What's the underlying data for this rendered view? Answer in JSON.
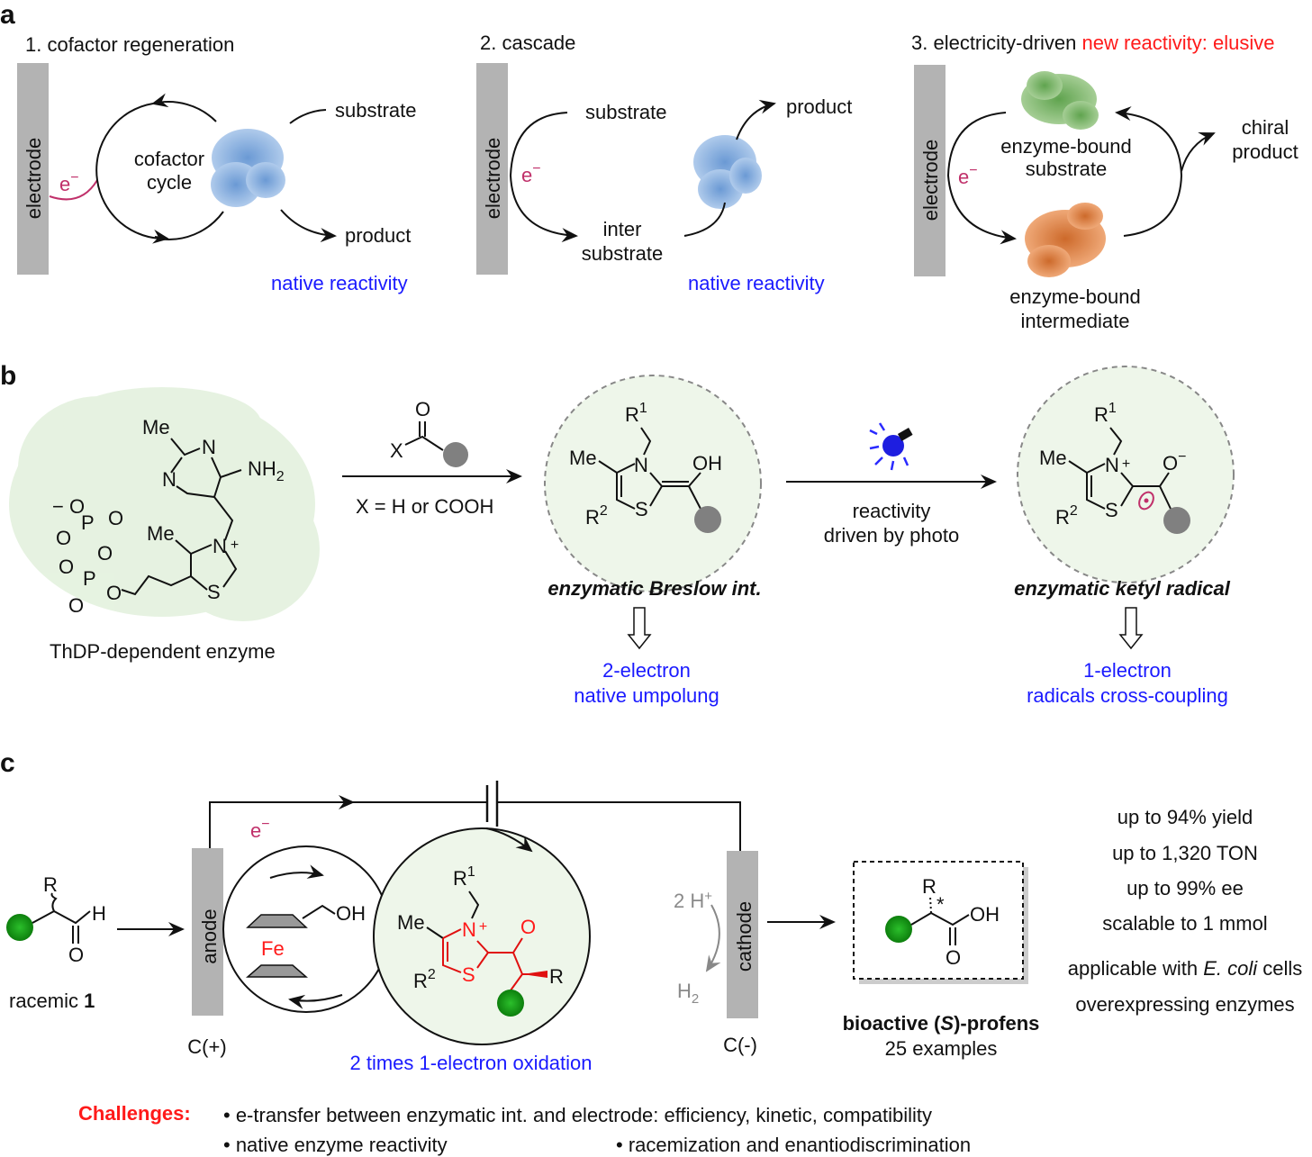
{
  "panel_a": {
    "label": "a",
    "s1": {
      "title": "1. cofactor regeneration",
      "electrode": "electrode",
      "e": "e",
      "e_sup": "−",
      "cycle_l1": "cofactor",
      "cycle_l2": "cycle",
      "substrate": "substrate",
      "product": "product",
      "note": "native reactivity"
    },
    "s2": {
      "title": "2. cascade",
      "electrode": "electrode",
      "e": "e",
      "e_sup": "−",
      "substrate": "substrate",
      "inter_l1": "inter",
      "inter_l2": "substrate",
      "product": "product",
      "note": "native reactivity"
    },
    "s3": {
      "title": "3. electricity-driven ",
      "title_red": "new reactivity: elusive",
      "electrode": "electrode",
      "e": "e",
      "e_sup": "−",
      "bound_sub_l1": "enzyme-bound",
      "bound_sub_l2": "substrate",
      "bound_int_l1": "enzyme-bound",
      "bound_int_l2": "intermediate",
      "chiral_l1": "chiral",
      "chiral_l2": "product"
    }
  },
  "panel_b": {
    "label": "b",
    "thdp": {
      "me1": "Me",
      "n1": "N",
      "nh2": "NH",
      "nh2_sub": "2",
      "n2": "N",
      "me2": "Me",
      "nplus": "N",
      "plus": "+",
      "s": "S",
      "p1": "P",
      "p2": "P",
      "o_minus1": "− O",
      "o1": "O",
      "o2": "O",
      "o3": "O",
      "o4": "O",
      "o5": "O",
      "o6": "O",
      "caption": "ThDP-dependent enzyme"
    },
    "reagent": {
      "o": "O",
      "x": "X",
      "condition": "X = H or COOH"
    },
    "breslow": {
      "r": "R",
      "r_sup": "1",
      "me": "Me",
      "n": "N",
      "oh": "OH",
      "r2": "R",
      "r2_sup": "2",
      "s": "S",
      "title": "enzymatic Breslow int.",
      "result_l1": "2-electron",
      "result_l2": "native umpolung"
    },
    "photo": {
      "l1": "reactivity",
      "l2": "driven by photo",
      "icon": "light-bulb"
    },
    "ketyl": {
      "r": "R",
      "r_sup": "1",
      "me": "Me",
      "n": "N",
      "plus": "+",
      "o": "O",
      "o_sup": "−",
      "r2": "R",
      "r2_sup": "2",
      "s": "S",
      "title": "enzymatic ketyl radical",
      "result_l1": "1-electron",
      "result_l2": "radicals cross-coupling"
    }
  },
  "panel_c": {
    "label": "c",
    "e": "e",
    "e_sup": "−",
    "racemic": {
      "r": "R",
      "h": "H",
      "o": "O",
      "caption": "racemic ",
      "caption_bold": "1"
    },
    "anode": "anode",
    "anode_label": "C(+)",
    "ferrocene": {
      "oh": "OH",
      "fe": "Fe"
    },
    "thiazolium": {
      "r": "R",
      "r_sup": "1",
      "me": "Me",
      "n": "N",
      "plus": "+",
      "o": "O",
      "r2": "R",
      "r2_sup": "2",
      "s": "S",
      "r_end": "R"
    },
    "oxidation": "2 times 1-electron oxidation",
    "protons": "2 H",
    "protons_sup": "+",
    "h2": "H",
    "h2_sub": "2",
    "cathode": "cathode",
    "cathode_label": "C(-)",
    "product": {
      "r": "R",
      "star": "*",
      "oh": "OH",
      "o": "O",
      "title_pre": "bioactive (",
      "title_s": "S",
      "title_post": ")-profens",
      "examples": "25 examples"
    },
    "stats": [
      "up to 94% yield",
      "up to 1,320 TON",
      "up to 99% ee",
      "scalable to 1 mmol"
    ],
    "applicable_l1_pre": "applicable with ",
    "applicable_l1_it": "E. coli",
    "applicable_l1_post": " cells",
    "applicable_l2": "overexpressing enzymes",
    "challenges": {
      "label": "Challenges:",
      "items": [
        "• e-transfer between enzymatic int. and electrode: efficiency, kinetic, compatibility",
        "• native enzyme reactivity",
        "• racemization and enantiodiscrimination"
      ]
    }
  },
  "colors": {
    "electrode": "#b3b3b3",
    "blue_text": "#1a1aff",
    "red_text": "#ff1a1a",
    "electron": "#c0306a",
    "green_ball": "#1a9a1a",
    "gray_ball": "#808080"
  }
}
